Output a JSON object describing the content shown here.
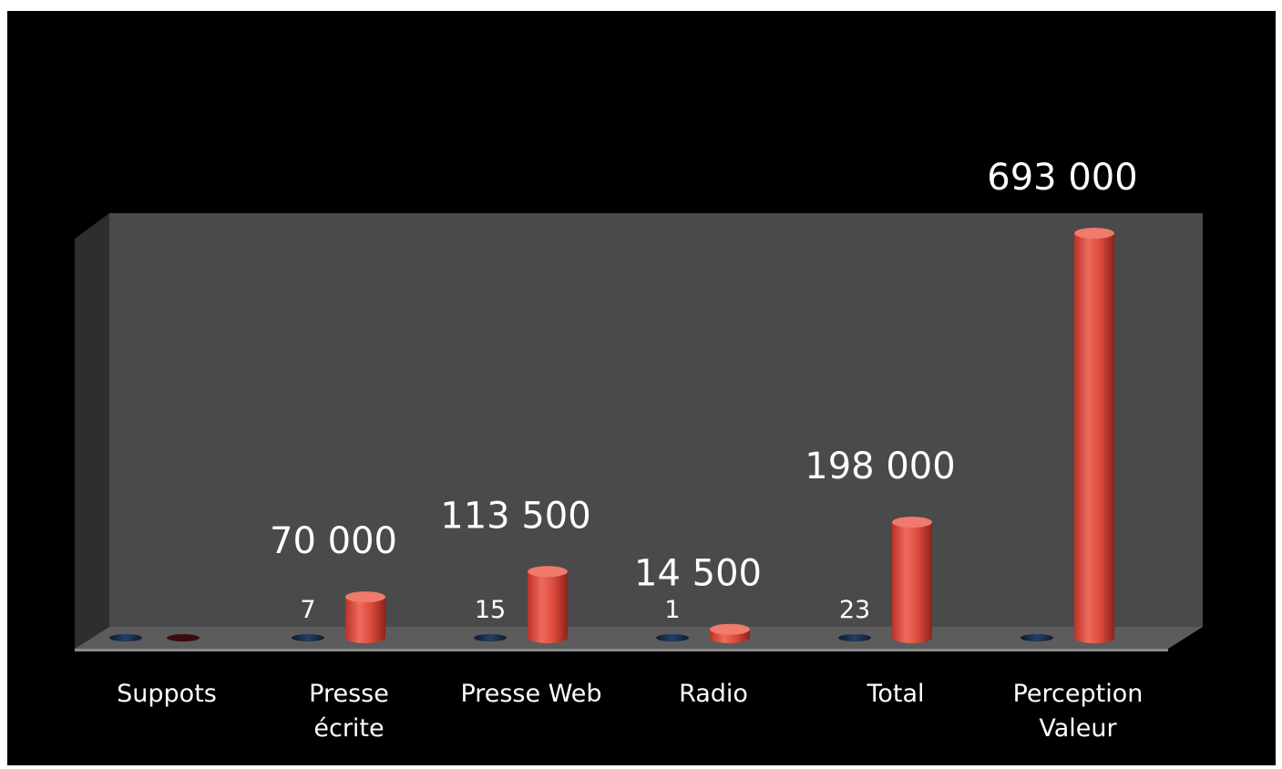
{
  "chart_data": {
    "type": "bar",
    "style": "3d-cylinder",
    "categories": [
      "Suppots",
      "Presse écrite",
      "Presse Web",
      "Radio",
      "Total",
      "Perception Valeur"
    ],
    "category_lines": [
      [
        "Suppots"
      ],
      [
        "Presse",
        "écrite"
      ],
      [
        "Presse Web"
      ],
      [
        "Radio"
      ],
      [
        "Total"
      ],
      [
        "Perception",
        "Valeur"
      ]
    ],
    "series": [
      {
        "values": [
          0,
          7,
          15,
          1,
          23,
          0
        ],
        "labels": [
          "",
          "7",
          "15",
          "1",
          "23",
          ""
        ],
        "color": "#1f3558"
      },
      {
        "values": [
          0,
          70000,
          113500,
          14500,
          198000,
          693000
        ],
        "labels": [
          "",
          "70 000",
          "113 500",
          "14 500",
          "198 000",
          "693 000"
        ],
        "color": "#d8453a"
      }
    ],
    "ylim": [
      0,
      693000
    ],
    "grid": false,
    "legend": "none",
    "colors": {
      "background": "#000000",
      "back_wall": "#4a4a4a",
      "floor": "#5a5a5a",
      "text": "#ffffff"
    }
  }
}
